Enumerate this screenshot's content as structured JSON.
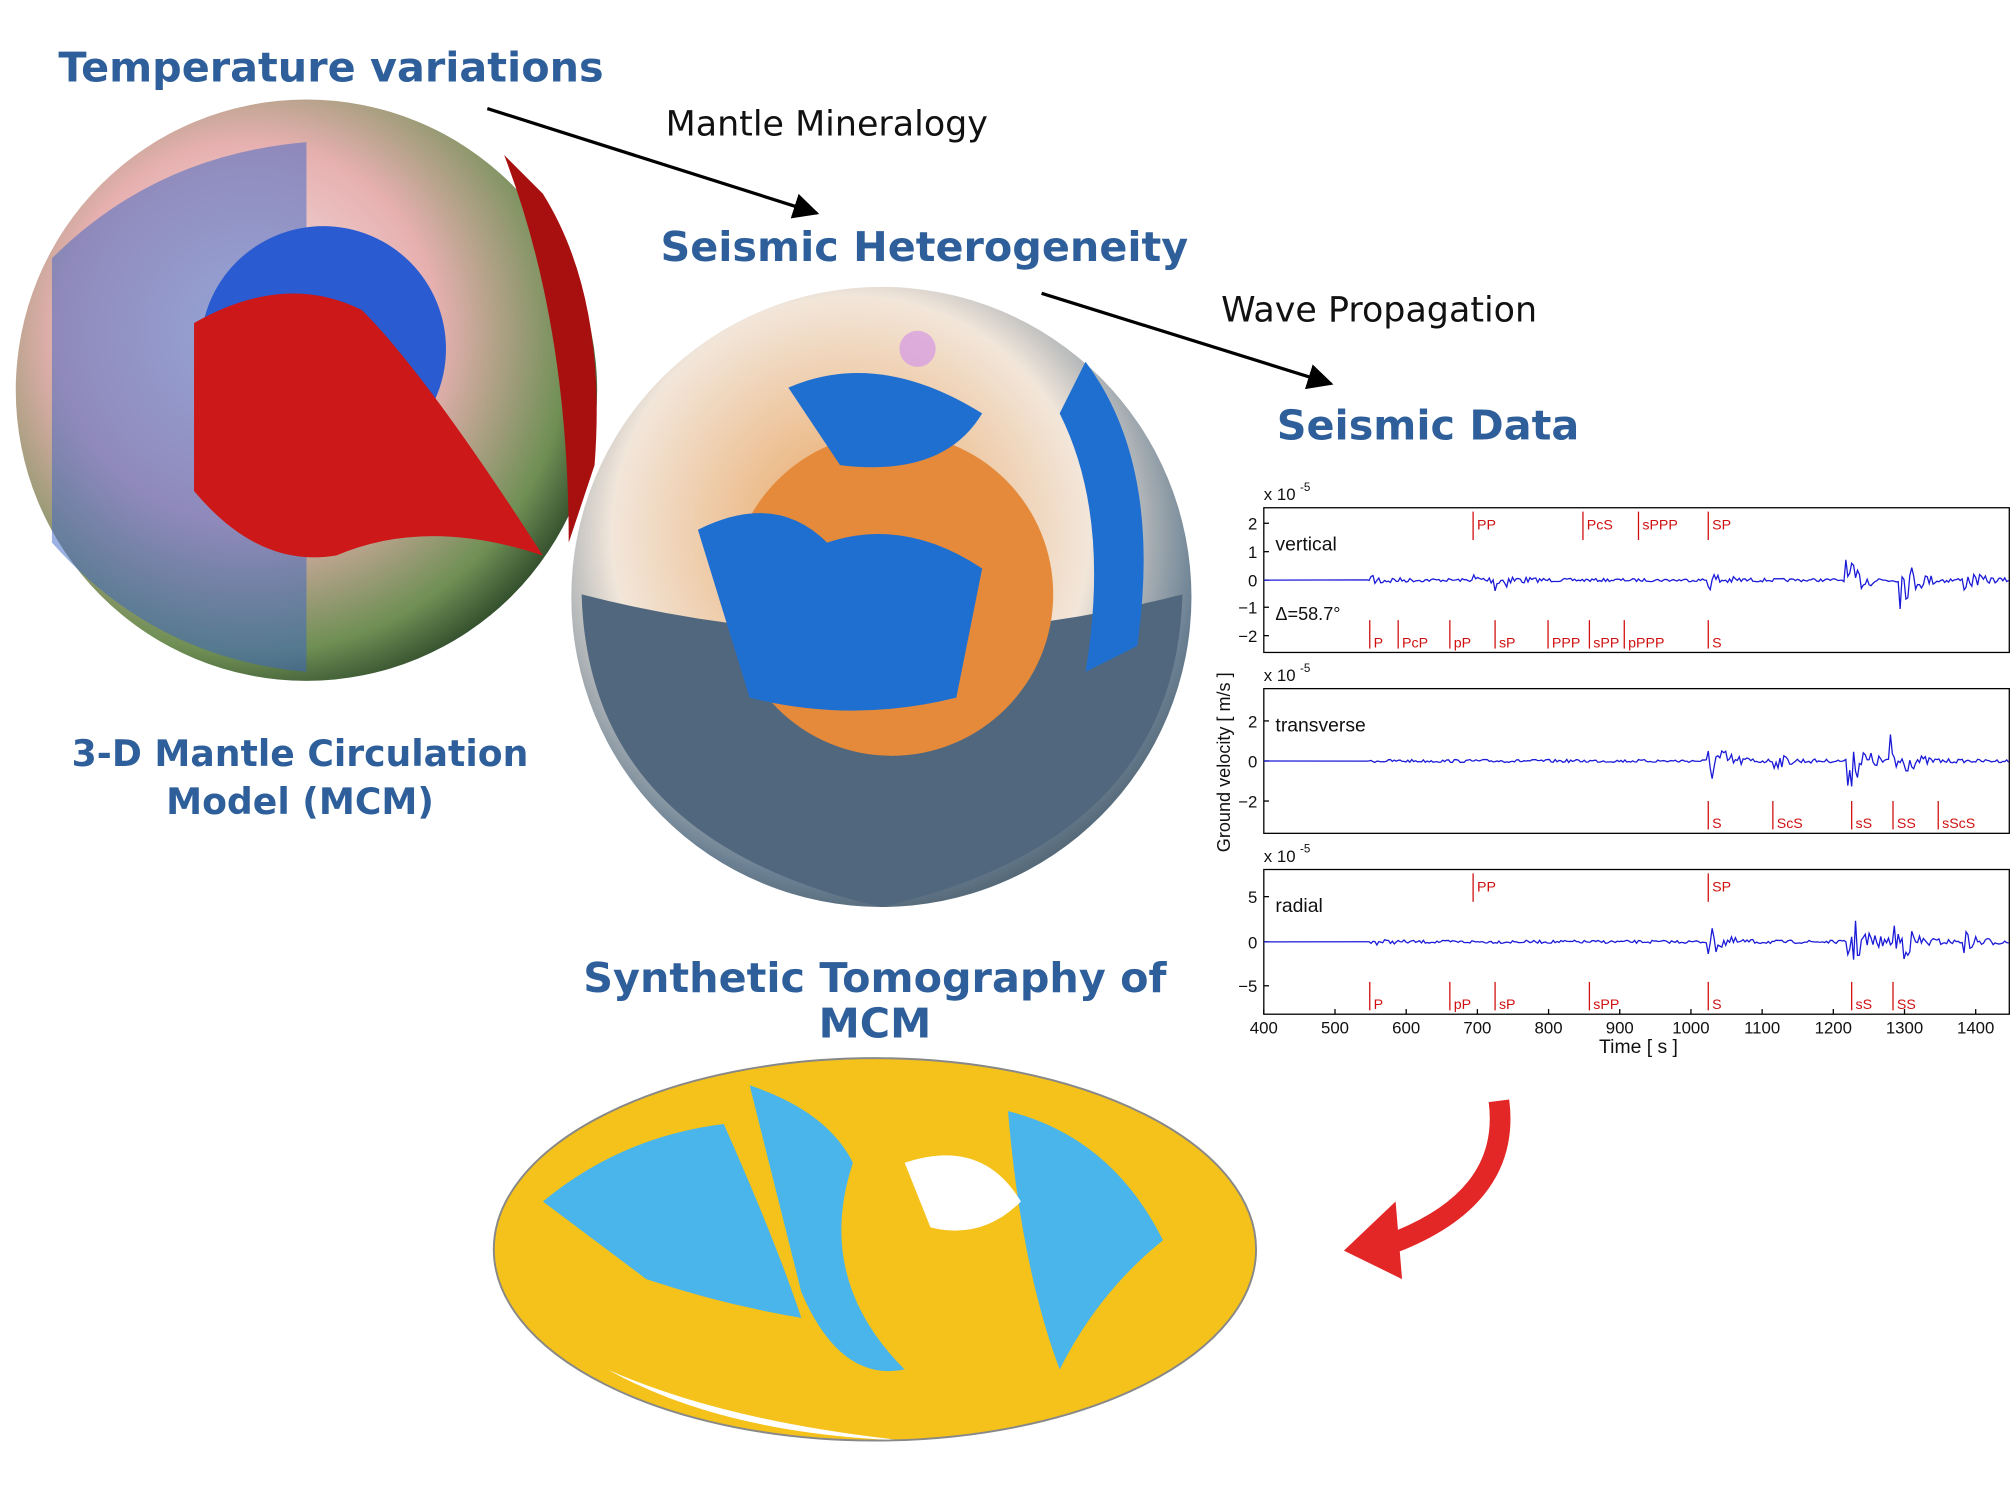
{
  "labels": {
    "temperature": "Temperature variations",
    "mineralogy": "Mantle Mineralogy",
    "heterogeneity": "Seismic Heterogeneity",
    "propagation": "Wave Propagation",
    "seismic_data": "Seismic Data",
    "mcm": [
      "3-D Mantle Circulation",
      "Model (MCM)"
    ],
    "tomography": [
      "Synthetic Tomography of",
      "MCM"
    ]
  },
  "seismogram": {
    "y_label": "Ground velocity [ m/s ]",
    "x_label": "Time [ s ]",
    "x_ticks": [
      "400",
      "500",
      "600",
      "700",
      "800",
      "900",
      "1000",
      "1100",
      "1200",
      "1300",
      "1400"
    ],
    "panels": [
      {
        "name": "vertical",
        "scale": "x 10",
        "exponent": "-5",
        "y_ticks": [
          "2",
          "1",
          "0",
          "−1",
          "−2"
        ],
        "annotation": "Δ=58.7°",
        "phases_top": [
          "PP",
          "PcS",
          "sPPP",
          "SP"
        ],
        "phases_bottom": [
          "P",
          "PcP",
          "pP",
          "sP",
          "PPP",
          "sPP",
          "pPPP",
          "S"
        ]
      },
      {
        "name": "transverse",
        "scale": "x 10",
        "exponent": "-5",
        "y_ticks": [
          "2",
          "0",
          "−2"
        ],
        "phases_top": [],
        "phases_bottom": [
          "S",
          "ScS",
          "sS",
          "SS",
          "sScS"
        ]
      },
      {
        "name": "radial",
        "scale": "x 10",
        "exponent": "-5",
        "y_ticks": [
          "5",
          "0",
          "−5"
        ],
        "phases_top": [
          "PP",
          "SP"
        ],
        "phases_bottom": [
          "P",
          "pP",
          "sP",
          "sPP",
          "S",
          "sS",
          "SS"
        ]
      }
    ]
  }
}
